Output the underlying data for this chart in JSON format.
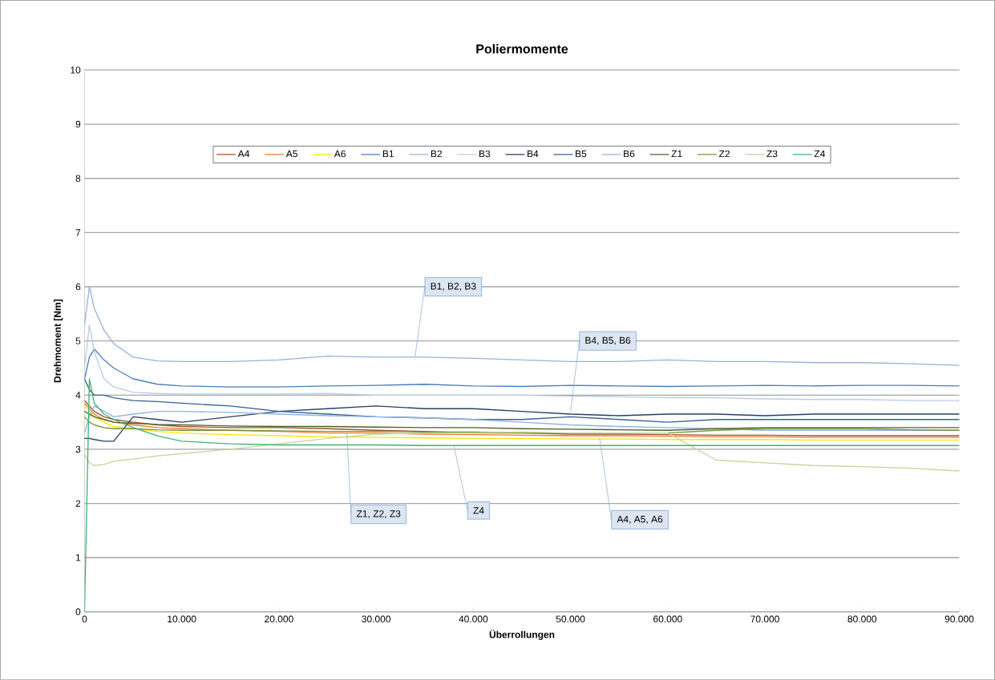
{
  "chart_data": {
    "type": "line",
    "title": "Poliermomente",
    "xlabel": "Überrollungen",
    "ylabel": "Drehmoment [Nm]",
    "xlim": [
      0,
      90000
    ],
    "ylim": [
      0,
      10
    ],
    "xticks": [
      0,
      {
        "value": 10000,
        "label": "10.000"
      },
      {
        "value": 20000,
        "label": "20.000"
      },
      {
        "value": 30000,
        "label": "30.000"
      },
      {
        "value": 40000,
        "label": "40.000"
      },
      {
        "value": 50000,
        "label": "50.000"
      },
      {
        "value": 60000,
        "label": "60.000"
      },
      {
        "value": 70000,
        "label": "70.000"
      },
      {
        "value": 80000,
        "label": "80.000"
      },
      {
        "value": 90000,
        "label": "90.000"
      }
    ],
    "yticks": [
      0,
      1,
      2,
      3,
      4,
      5,
      6,
      7,
      8,
      9,
      10
    ],
    "grid": "y",
    "legend": "top",
    "marker": "none",
    "line_style": "solid",
    "x": [
      0,
      500,
      1000,
      2000,
      3000,
      5000,
      7500,
      10000,
      15000,
      20000,
      25000,
      30000,
      35000,
      40000,
      45000,
      50000,
      55000,
      60000,
      65000,
      70000,
      75000,
      80000,
      85000,
      90000
    ],
    "series": [
      {
        "name": "A4",
        "color": "#a0522d",
        "values": [
          3.9,
          3.8,
          3.7,
          3.6,
          3.55,
          3.5,
          3.45,
          3.42,
          3.4,
          3.4,
          3.38,
          3.35,
          3.33,
          3.3,
          3.3,
          3.28,
          3.28,
          3.27,
          3.26,
          3.26,
          3.25,
          3.25,
          3.25,
          3.25
        ]
      },
      {
        "name": "A5",
        "color": "#ed7d31",
        "values": [
          3.85,
          3.75,
          3.65,
          3.55,
          3.5,
          3.45,
          3.4,
          3.38,
          3.35,
          3.33,
          3.3,
          3.3,
          3.28,
          3.27,
          3.26,
          3.25,
          3.25,
          3.24,
          3.23,
          3.23,
          3.22,
          3.22,
          3.22,
          3.22
        ]
      },
      {
        "name": "A6",
        "color": "#ffe600",
        "values": [
          3.8,
          3.7,
          3.6,
          3.5,
          3.42,
          3.38,
          3.33,
          3.3,
          3.27,
          3.25,
          3.23,
          3.22,
          3.21,
          3.2,
          3.2,
          3.19,
          3.19,
          3.18,
          3.18,
          3.18,
          3.17,
          3.17,
          3.17,
          3.17
        ]
      },
      {
        "name": "B1",
        "color": "#4a7ebb",
        "values": [
          4.3,
          4.7,
          4.85,
          4.65,
          4.5,
          4.3,
          4.2,
          4.17,
          4.15,
          4.15,
          4.17,
          4.18,
          4.2,
          4.17,
          4.16,
          4.18,
          4.17,
          4.16,
          4.17,
          4.18,
          4.17,
          4.18,
          4.18,
          4.17
        ]
      },
      {
        "name": "B2",
        "color": "#95b3d7",
        "values": [
          5.3,
          6.0,
          5.6,
          5.2,
          4.95,
          4.7,
          4.63,
          4.62,
          4.62,
          4.65,
          4.72,
          4.7,
          4.7,
          4.68,
          4.65,
          4.62,
          4.62,
          4.65,
          4.62,
          4.62,
          4.6,
          4.6,
          4.58,
          4.55
        ]
      },
      {
        "name": "B3",
        "color": "#b9cde5",
        "values": [
          4.5,
          5.3,
          4.8,
          4.3,
          4.15,
          4.05,
          4.03,
          4.02,
          4.02,
          4.02,
          4.03,
          4.0,
          4.0,
          4.0,
          4.0,
          3.98,
          3.97,
          3.95,
          3.95,
          3.93,
          3.92,
          3.92,
          3.9,
          3.9
        ]
      },
      {
        "name": "B4",
        "color": "#254061",
        "values": [
          3.2,
          3.2,
          3.18,
          3.15,
          3.15,
          3.6,
          3.55,
          3.5,
          3.6,
          3.7,
          3.75,
          3.8,
          3.75,
          3.75,
          3.7,
          3.65,
          3.62,
          3.65,
          3.65,
          3.62,
          3.65,
          3.65,
          3.65,
          3.65
        ]
      },
      {
        "name": "B5",
        "color": "#376092",
        "values": [
          4.3,
          4.1,
          4.0,
          4.0,
          3.95,
          3.9,
          3.88,
          3.85,
          3.8,
          3.7,
          3.65,
          3.6,
          3.58,
          3.55,
          3.55,
          3.6,
          3.55,
          3.5,
          3.55,
          3.55,
          3.55,
          3.55,
          3.55,
          3.55
        ]
      },
      {
        "name": "B6",
        "color": "#8eb4e3",
        "values": [
          3.3,
          3.6,
          3.8,
          3.7,
          3.6,
          3.65,
          3.7,
          3.7,
          3.68,
          3.65,
          3.62,
          3.6,
          3.58,
          3.55,
          3.5,
          3.45,
          3.42,
          3.4,
          3.38,
          3.35,
          3.35,
          3.35,
          3.35,
          3.35
        ]
      },
      {
        "name": "Z1",
        "color": "#4f6228",
        "values": [
          3.7,
          3.65,
          3.6,
          3.55,
          3.5,
          3.48,
          3.46,
          3.45,
          3.43,
          3.42,
          3.42,
          3.41,
          3.4,
          3.4,
          3.38,
          3.37,
          3.36,
          3.35,
          3.38,
          3.4,
          3.4,
          3.4,
          3.4,
          3.4
        ]
      },
      {
        "name": "Z2",
        "color": "#77933c",
        "values": [
          3.6,
          3.5,
          3.45,
          3.4,
          3.38,
          3.38,
          3.36,
          3.35,
          3.35,
          3.34,
          3.33,
          3.33,
          3.32,
          3.32,
          3.3,
          3.3,
          3.3,
          3.3,
          3.35,
          3.38,
          3.38,
          3.38,
          3.36,
          3.35
        ]
      },
      {
        "name": "Z3",
        "color": "#c3d69b",
        "values": [
          2.9,
          2.75,
          2.7,
          2.72,
          2.78,
          2.82,
          2.88,
          2.92,
          3.0,
          3.1,
          3.2,
          3.28,
          3.3,
          3.3,
          3.32,
          3.3,
          3.3,
          3.3,
          2.8,
          2.75,
          2.7,
          2.68,
          2.65,
          2.6
        ]
      },
      {
        "name": "Z4",
        "color": "#3cb371",
        "values": [
          0,
          4.3,
          3.85,
          3.65,
          3.55,
          3.4,
          3.25,
          3.15,
          3.1,
          3.08,
          3.08,
          3.08,
          3.07,
          3.07,
          3.07,
          3.07,
          3.07,
          3.07,
          3.07,
          3.07,
          3.07,
          3.07,
          3.07,
          3.07
        ]
      }
    ],
    "annotations": [
      {
        "text": "B1, B2, B3",
        "x": 34000,
        "y": 4.7
      },
      {
        "text": "B4, B5, B6",
        "x": 50000,
        "y": 3.7
      },
      {
        "text": "Z1, Z2, Z3",
        "x": 27000,
        "y": 3.3
      },
      {
        "text": "Z4",
        "x": 38000,
        "y": 3.07
      },
      {
        "text": "A4, A5, A6",
        "x": 53000,
        "y": 3.2
      }
    ]
  }
}
